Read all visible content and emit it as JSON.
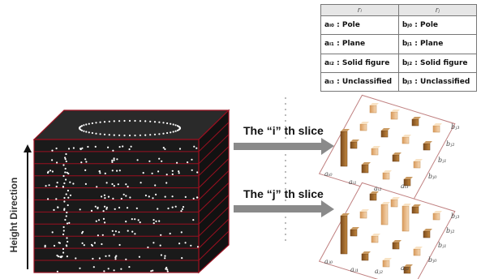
{
  "legend": {
    "col_a": "rᵢ",
    "col_b": "rⱼ",
    "rows": [
      {
        "a": "aᵢ₀ : Pole",
        "b": "bⱼ₀ : Pole"
      },
      {
        "a": "aᵢ₁ : Plane",
        "b": "bⱼ₁ : Plane"
      },
      {
        "a": "aᵢ₂ : Solid figure",
        "b": "bⱼ₂ : Solid figure"
      },
      {
        "a": "aᵢ₃ : Unclassified",
        "b": "bⱼ₃ : Unclassified"
      }
    ]
  },
  "slice_i_caption": "The “i” th slice",
  "slice_j_caption": "The “j” th slice",
  "height_label": "Height Direction",
  "grid_top_labels": {
    "a": [
      "aᵢ₀",
      "aᵢ₁",
      "aᵢ₂",
      "aᵢ₃"
    ],
    "b": [
      "bⱼ₀",
      "bⱼ₁",
      "bⱼ₂",
      "bⱼ₃"
    ]
  },
  "grid_bottom_labels": {
    "a": [
      "aⱼ₀",
      "aⱼ₁",
      "aⱼ₂",
      "aⱼ₃"
    ],
    "b": [
      "bⱼ₀",
      "bⱼ₁",
      "bⱼ₂",
      "bⱼ₃"
    ]
  },
  "colors": {
    "cube_fill": "#1a1a1a",
    "cube_edge": "#9a1020",
    "points": "#ffffff",
    "arrow": "#8a8a8a",
    "bar_dark": "#a86a2c",
    "bar_light": "#f2cfa3"
  }
}
